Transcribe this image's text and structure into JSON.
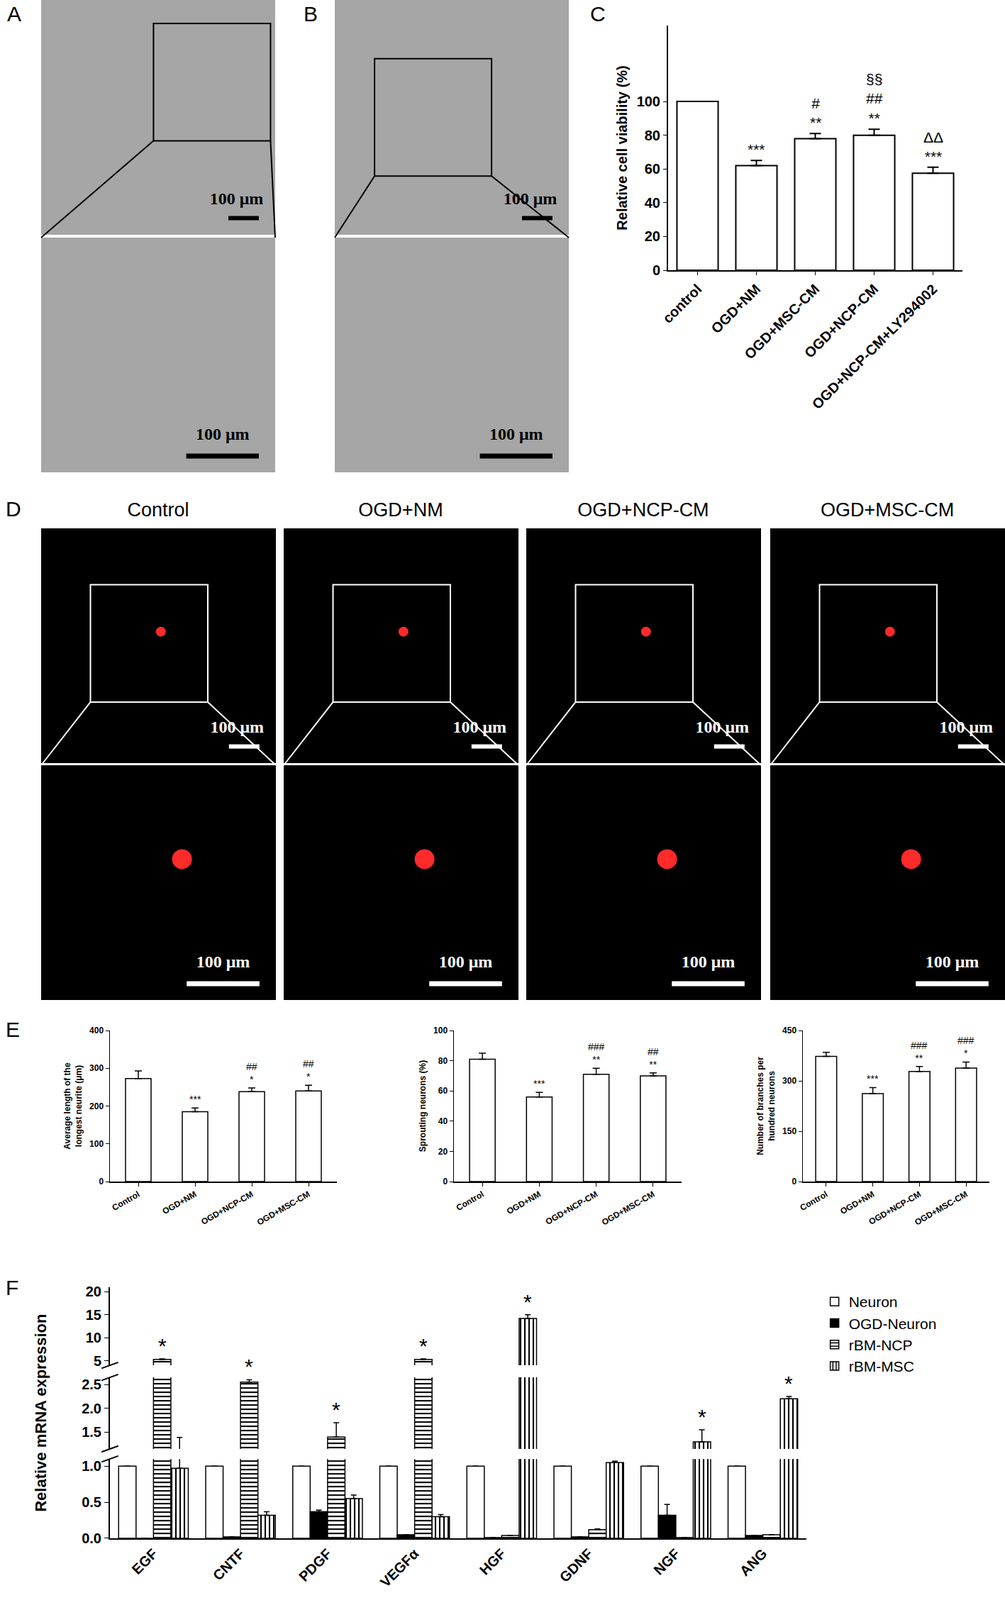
{
  "figure": {
    "panel_labels": [
      "A",
      "B",
      "C",
      "D",
      "E",
      "F"
    ],
    "A": {
      "scale_bars": [
        "100 μm",
        "100 μm"
      ]
    },
    "B": {
      "scale_bars": [
        "100 μm",
        "100 μm"
      ]
    },
    "D": {
      "titles": [
        "Control",
        "OGD+NM",
        "OGD+NCP-CM",
        "OGD+MSC-CM"
      ],
      "scale_bars": [
        [
          "100 μm",
          "100 μm"
        ],
        [
          "100 μm",
          "100 μm"
        ],
        [
          "100 μm",
          "100 μm"
        ],
        [
          "100 μm",
          "100 μm"
        ]
      ]
    }
  },
  "chart_data": [
    {
      "type": "bar",
      "ylabel": "Relative cell viability (%)",
      "categories": [
        "control",
        "OGD+NM",
        "OGD+MSC-CM",
        "OGD+NCP-CM",
        "OGD+NCP-CM+LY294002"
      ],
      "values": [
        100,
        62,
        78,
        80,
        57.5
      ],
      "errors": [
        0,
        3,
        3,
        3.5,
        3.5
      ],
      "color": "#ffffff",
      "ylim": [
        0,
        145
      ],
      "yticks": [
        0,
        20,
        40,
        60,
        80,
        100
      ],
      "grid": false,
      "annotations": [
        {
          "category": "OGD+NM",
          "text": [
            "***"
          ]
        },
        {
          "category": "OGD+MSC-CM",
          "text": [
            "#",
            "**"
          ]
        },
        {
          "category": "OGD+NCP-CM",
          "text": [
            "§§",
            "##",
            "**"
          ]
        },
        {
          "category": "OGD+NCP-CM+LY294002",
          "text": [
            "ΔΔ",
            "***"
          ]
        }
      ]
    },
    {
      "type": "bar",
      "ylabel": [
        "Average length of the",
        "longest neurite (μm)"
      ],
      "categories": [
        "Control",
        "OGD+NM",
        "OGD+NCP-CM",
        "OGD+MSC-CM"
      ],
      "values": [
        273,
        185,
        238,
        240
      ],
      "errors": [
        20,
        10,
        10,
        15
      ],
      "color": "#ffffff",
      "ylim": [
        0,
        400
      ],
      "yticks": [
        0,
        100,
        200,
        300,
        400
      ],
      "grid": false,
      "annotations": [
        {
          "category": "OGD+NM",
          "text": [
            "***"
          ]
        },
        {
          "category": "OGD+NCP-CM",
          "text": [
            "##",
            "*"
          ]
        },
        {
          "category": "OGD+MSC-CM",
          "text": [
            "##",
            "*"
          ]
        }
      ]
    },
    {
      "type": "bar",
      "ylabel": [
        "Sprouting neurons (%)"
      ],
      "categories": [
        "Control",
        "OGD+NM",
        "OGD+NCP-CM",
        "OGD+MSC-CM"
      ],
      "values": [
        81,
        56,
        71,
        70
      ],
      "errors": [
        4,
        3,
        4,
        2
      ],
      "color": "#ffffff",
      "ylim": [
        0,
        100
      ],
      "yticks": [
        0,
        20,
        40,
        60,
        80,
        100
      ],
      "grid": false,
      "annotations": [
        {
          "category": "OGD+NM",
          "text": [
            "***"
          ]
        },
        {
          "category": "OGD+NCP-CM",
          "text": [
            "###",
            "**"
          ]
        },
        {
          "category": "OGD+MSC-CM",
          "text": [
            "##",
            "**"
          ]
        }
      ]
    },
    {
      "type": "bar",
      "ylabel": [
        "Number of branches per",
        "hundred neurons"
      ],
      "categories": [
        "Control",
        "OGD+NM",
        "OGD+NCP-CM",
        "OGD+MSC-CM"
      ],
      "values": [
        373,
        262,
        328,
        338
      ],
      "errors": [
        12,
        18,
        15,
        18
      ],
      "color": "#ffffff",
      "ylim": [
        0,
        450
      ],
      "yticks": [
        0,
        150,
        300,
        450
      ],
      "grid": false,
      "annotations": [
        {
          "category": "OGD+NM",
          "text": [
            "***"
          ]
        },
        {
          "category": "OGD+NCP-CM",
          "text": [
            "###",
            "**"
          ]
        },
        {
          "category": "OGD+MSC-CM",
          "text": [
            "###",
            "*"
          ]
        }
      ]
    },
    {
      "type": "bar",
      "ylabel": "Relative mRNA expression",
      "categories": [
        "EGF",
        "CNTF",
        "PDGF",
        "VEGFα",
        "HGF",
        "GDNF",
        "NGF",
        "ANG"
      ],
      "series": [
        {
          "name": "Neuron",
          "color": "#ffffff",
          "marker": "solid",
          "values": [
            1,
            1,
            1,
            1,
            1,
            1,
            1,
            1
          ],
          "errors": [
            0,
            0,
            0,
            0,
            0,
            0,
            0,
            0
          ]
        },
        {
          "name": "OGD-Neuron",
          "color": "#000000",
          "marker": "solid",
          "values": [
            0,
            0.02,
            0.37,
            0.05,
            0.01,
            0.02,
            0.32,
            0.04
          ],
          "errors": [
            0,
            0,
            0.02,
            0,
            0,
            0,
            0.15,
            0
          ]
        },
        {
          "name": "rBM-NCP",
          "color": "#ffffff",
          "marker": "horizontal_stripes",
          "values": [
            5.3,
            2.55,
            1.4,
            5.3,
            0.04,
            0.12,
            0.01,
            0.05
          ],
          "errors": [
            0.1,
            0.05,
            0.3,
            0.1,
            0,
            0.01,
            0,
            0
          ]
        },
        {
          "name": "rBM-MSC",
          "color": "#ffffff",
          "marker": "vertical_stripes",
          "values": [
            0.97,
            0.32,
            0.55,
            0.3,
            14.2,
            1.05,
            1.3,
            2.2
          ],
          "errors": [
            0.42,
            0.05,
            0.05,
            0.03,
            0.8,
            0.02,
            0.25,
            0.05
          ]
        }
      ],
      "ylim": [
        [
          0,
          1.1
        ],
        [
          1.15,
          2.65
        ],
        [
          4,
          21
        ]
      ],
      "yticks": [
        [
          {
            "value": 0,
            "label": "0.0"
          },
          {
            "value": 0.5,
            "label": "0.5"
          },
          {
            "value": 1,
            "label": "1.0"
          }
        ],
        [
          {
            "value": 1.5,
            "label": "1.5"
          },
          {
            "value": 2,
            "label": "2.0"
          },
          {
            "value": 2.5,
            "label": "2.5"
          }
        ],
        [
          5,
          10,
          15,
          20
        ]
      ],
      "grid": false,
      "legend": "upper right",
      "annotations": [
        {
          "category": "EGF",
          "series": "rBM-NCP",
          "text": [
            "*"
          ]
        },
        {
          "category": "CNTF",
          "series": "rBM-NCP",
          "text": [
            "*"
          ]
        },
        {
          "category": "PDGF",
          "series": "rBM-NCP",
          "text": [
            "*"
          ]
        },
        {
          "category": "VEGFα",
          "series": "rBM-NCP",
          "text": [
            "*"
          ]
        },
        {
          "category": "HGF",
          "series": "rBM-MSC",
          "text": [
            "*"
          ]
        },
        {
          "category": "NGF",
          "series": "rBM-MSC",
          "text": [
            "*"
          ]
        },
        {
          "category": "ANG",
          "series": "rBM-MSC",
          "text": [
            "*"
          ]
        }
      ]
    }
  ]
}
